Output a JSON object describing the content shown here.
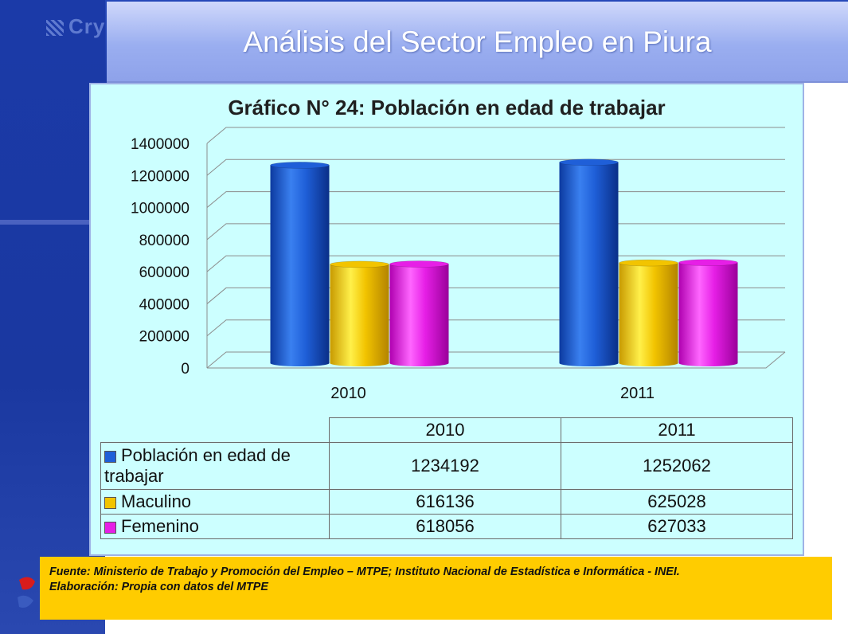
{
  "header": {
    "title": "Análisis del Sector Empleo en Piura",
    "logo_text": "Cry"
  },
  "chart_data": {
    "type": "bar",
    "title": "Gráfico N° 24: Población en edad de trabajar",
    "categories": [
      "2010",
      "2011"
    ],
    "series": [
      {
        "name": "Población en edad de trabajar",
        "values": [
          1234192,
          1252062
        ],
        "color": "#1f5fd8"
      },
      {
        "name": "Maculino",
        "values": [
          616136,
          625028
        ],
        "color": "#f2c400"
      },
      {
        "name": "Femenino",
        "values": [
          618056,
          627033
        ],
        "color": "#e61fe6"
      }
    ],
    "yticks": [
      "0",
      "200000",
      "400000",
      "600000",
      "800000",
      "1000000",
      "1200000",
      "1400000"
    ],
    "ylim": [
      0,
      1400000
    ],
    "grid": true,
    "data_table": {
      "headers": [
        "2010",
        "2011"
      ],
      "rows": [
        {
          "label": "Población en edad de trabajar",
          "values": [
            "1234192",
            "1252062"
          ]
        },
        {
          "label": "Maculino",
          "values": [
            "616136",
            "625028"
          ]
        },
        {
          "label": "Femenino",
          "values": [
            "618056",
            "627033"
          ]
        }
      ]
    }
  },
  "source": {
    "line1": "Fuente: Ministerio de Trabajo y Promoción del Empleo – MTPE; Instituto Nacional de Estadística e Informática - INEI.",
    "line2": "Elaboración: Propia con datos del MTPE"
  }
}
